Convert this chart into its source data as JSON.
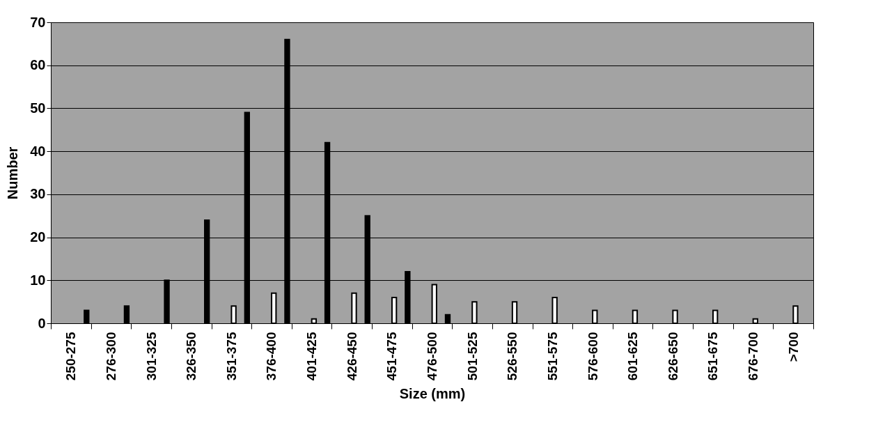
{
  "chart_data": {
    "type": "bar",
    "xlabel": "Size (mm)",
    "ylabel": "Number",
    "categories": [
      "250-275",
      "276-300",
      "301-325",
      "326-350",
      "351-375",
      "376-400",
      "401-425",
      "426-450",
      "451-475",
      "476-500",
      "501-525",
      "526-550",
      "551-575",
      "576-600",
      "601-625",
      "626-650",
      "651-675",
      "676-700",
      ">700"
    ],
    "series": [
      {
        "color": "#ffffff",
        "values": [
          null,
          null,
          null,
          null,
          4,
          7,
          1,
          7,
          6,
          9,
          5,
          5,
          6,
          3,
          3,
          3,
          3,
          1,
          4
        ]
      },
      {
        "color": "#000000",
        "values": [
          3,
          4,
          10,
          24,
          49,
          66,
          42,
          25,
          12,
          2,
          null,
          null,
          null,
          null,
          null,
          null,
          null,
          null,
          null
        ]
      }
    ],
    "ylim": [
      0,
      70
    ],
    "yticks": [
      0,
      10,
      20,
      30,
      40,
      50,
      60,
      70
    ],
    "grid": "y",
    "legend": false
  }
}
